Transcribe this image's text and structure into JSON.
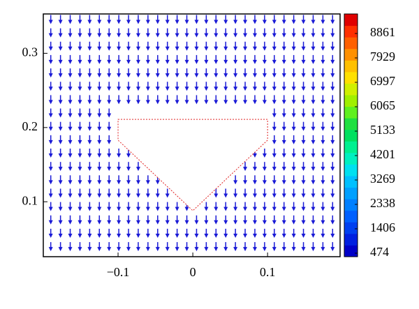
{
  "chart_data": {
    "type": "quiver",
    "xlim": [
      -0.2,
      0.197
    ],
    "ylim": [
      0.026,
      0.353
    ],
    "xticks": [
      {
        "value": -0.1,
        "label": "−0.1"
      },
      0,
      0.1
    ],
    "yticks": [
      0.1,
      0.2,
      0.3
    ],
    "grid_x": [
      -0.19,
      -0.177,
      -0.164,
      -0.151,
      -0.138,
      -0.125,
      -0.112,
      -0.099,
      -0.086,
      -0.073,
      -0.06,
      -0.047,
      -0.034,
      -0.021,
      -0.008,
      0.005,
      0.018,
      0.031,
      0.044,
      0.057,
      0.07,
      0.083,
      0.096,
      0.109,
      0.122,
      0.135,
      0.148,
      0.161,
      0.174,
      0.187
    ],
    "grid_y": [
      0.04,
      0.058,
      0.076,
      0.094,
      0.112,
      0.13,
      0.148,
      0.166,
      0.184,
      0.202,
      0.22,
      0.238,
      0.256,
      0.274,
      0.292,
      0.31,
      0.328,
      0.346
    ],
    "arrow_color": "#1a1ad6",
    "obstacle_x": [
      -0.1,
      0.1,
      0.1,
      0,
      -0.1
    ],
    "obstacle_y": [
      0.211,
      0.211,
      0.183,
      0.088,
      0.183
    ],
    "obstacle_edge_color": "#e02020",
    "colorbar": {
      "clim": [
        341,
        9607
      ],
      "ticks": [
        474,
        1406,
        2338,
        3269,
        4201,
        5133,
        6065,
        6997,
        7929,
        8861
      ],
      "colors": [
        "#0000c8",
        "#0020e0",
        "#0040f0",
        "#0060ff",
        "#0080ff",
        "#00a0ff",
        "#00c0ff",
        "#00e0f0",
        "#00f0c0",
        "#00f090",
        "#00e060",
        "#20e040",
        "#60f020",
        "#a0f000",
        "#d0f000",
        "#ffe000",
        "#ffc000",
        "#ff9000",
        "#ff6000",
        "#ff3000",
        "#e00000"
      ]
    }
  }
}
